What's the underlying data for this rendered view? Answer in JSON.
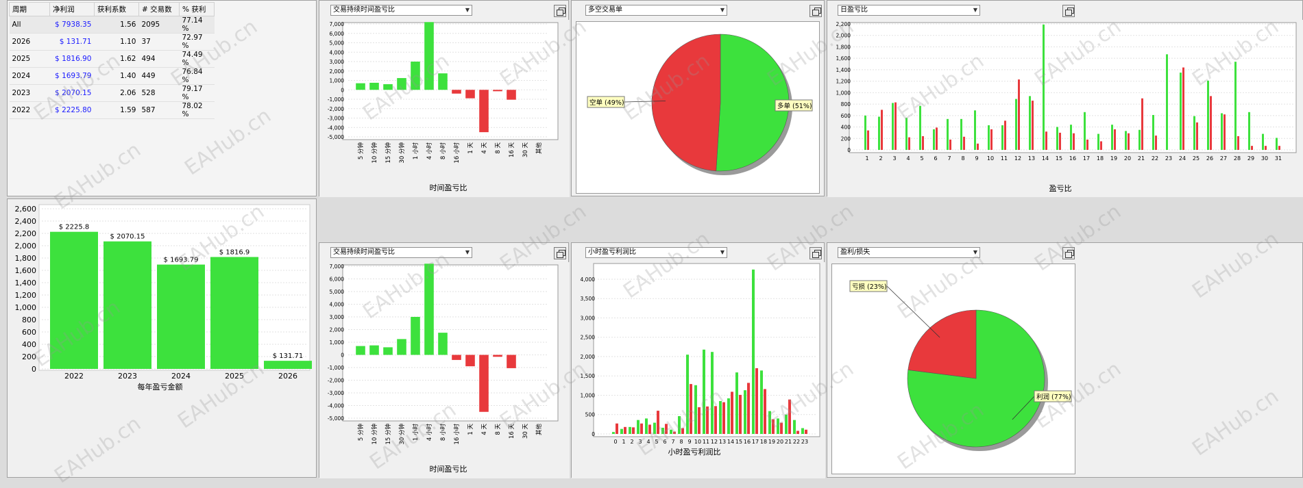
{
  "stats_table": {
    "headers": [
      "周期",
      "净利润",
      "获利系数",
      "# 交易数",
      "% 获利"
    ],
    "rows": [
      {
        "period": "All",
        "net": "$ 7938.35",
        "pf": "1.56",
        "trades": "2095",
        "win": "77.14 %"
      },
      {
        "period": "2026",
        "net": "$ 131.71",
        "pf": "1.10",
        "trades": "37",
        "win": "72.97 %"
      },
      {
        "period": "2025",
        "net": "$ 1816.90",
        "pf": "1.62",
        "trades": "494",
        "win": "74.49 %"
      },
      {
        "period": "2024",
        "net": "$ 1693.79",
        "pf": "1.40",
        "trades": "449",
        "win": "76.84 %"
      },
      {
        "period": "2023",
        "net": "$ 2070.15",
        "pf": "2.06",
        "trades": "528",
        "win": "79.17 %"
      },
      {
        "period": "2022",
        "net": "$ 2225.80",
        "pf": "1.59",
        "trades": "587",
        "win": "78.02 %"
      }
    ]
  },
  "panels": {
    "p1_select": "交易持续时间盈亏比",
    "p2_select": "多空交易单",
    "p3_select": "日盈亏比",
    "p5_select": "交易持续时间盈亏比",
    "p6_select": "小时盈亏利润比",
    "p7_select": "盈利/损失"
  },
  "watermark": "EAHub.cn",
  "colors": {
    "green": "#3de13d",
    "red": "#e8393c",
    "label_bg": "#ffffc0"
  },
  "chart_data": [
    {
      "id": "duration1",
      "type": "bar",
      "xlabel": "时间盈亏比",
      "categories": [
        "5 分钟",
        "10 分钟",
        "15 分钟",
        "30 分钟",
        "1 小时",
        "4 小时",
        "8 小时",
        "16 小时",
        "1 天",
        "4 天",
        "8 天",
        "16 天",
        "30 天",
        "其他"
      ],
      "values": [
        700,
        750,
        600,
        1250,
        3000,
        7200,
        1750,
        -400,
        -900,
        -4500,
        -150,
        -1050,
        0,
        0
      ],
      "ylim": [
        -5000,
        7000
      ],
      "yticks": [
        "7,000",
        "6,000",
        "5,000",
        "4,000",
        "3,000",
        "2,000",
        "1,000",
        "0",
        "-1,000",
        "-2,000",
        "-3,000",
        "-4,000",
        "-5,000"
      ]
    },
    {
      "id": "longshort",
      "type": "pie",
      "slices": [
        {
          "label": "多单 (51%)",
          "value": 51,
          "color": "#3de13d"
        },
        {
          "label": "空单 (49%)",
          "value": 49,
          "color": "#e8393c"
        }
      ]
    },
    {
      "id": "daily",
      "type": "bar",
      "xlabel": "盈亏比",
      "categories": [
        "1",
        "2",
        "3",
        "4",
        "5",
        "6",
        "7",
        "8",
        "9",
        "10",
        "11",
        "12",
        "13",
        "14",
        "15",
        "16",
        "17",
        "18",
        "19",
        "20",
        "21",
        "22",
        "23",
        "24",
        "25",
        "26",
        "27",
        "28",
        "29",
        "30",
        "31"
      ],
      "series": [
        {
          "color": "green",
          "values": [
            600,
            580,
            820,
            560,
            770,
            360,
            540,
            540,
            690,
            430,
            430,
            890,
            940,
            2190,
            400,
            440,
            660,
            280,
            440,
            330,
            350,
            610,
            1670,
            1350,
            590,
            1210,
            640,
            1540,
            660,
            280,
            210
          ]
        },
        {
          "color": "red",
          "values": [
            340,
            700,
            830,
            220,
            240,
            390,
            180,
            230,
            110,
            360,
            510,
            1230,
            860,
            320,
            300,
            290,
            180,
            150,
            360,
            290,
            900,
            250,
            0,
            1440,
            480,
            940,
            620,
            240,
            70,
            70,
            70
          ]
        }
      ],
      "ylim": [
        0,
        2200
      ],
      "yticks": [
        "2,200",
        "2,000",
        "1,800",
        "1,600",
        "1,400",
        "1,200",
        "1,000",
        "800",
        "600",
        "400",
        "200",
        "0"
      ]
    },
    {
      "id": "yearly",
      "type": "bar",
      "xlabel": "每年盈亏金额",
      "categories": [
        "2022",
        "2023",
        "2024",
        "2025",
        "2026"
      ],
      "values": [
        2225.8,
        2070.15,
        1693.79,
        1816.9,
        131.71
      ],
      "data_labels": [
        "$ 2225.8",
        "$ 2070.15",
        "$ 1693.79",
        "$ 1816.9",
        "$ 131.71"
      ],
      "ylim": [
        0,
        2600
      ],
      "yticks": [
        "2,600",
        "2,400",
        "2,200",
        "2,000",
        "1,800",
        "1,600",
        "1,400",
        "1,200",
        "1,000",
        "800",
        "600",
        "400",
        "200",
        "0"
      ]
    },
    {
      "id": "duration2",
      "type": "bar",
      "xlabel": "时间盈亏比",
      "categories": [
        "5 分钟",
        "10 分钟",
        "15 分钟",
        "30 分钟",
        "1 小时",
        "4 小时",
        "8 小时",
        "16 小时",
        "1 天",
        "4 天",
        "8 天",
        "16 天",
        "30 天",
        "其他"
      ],
      "values": [
        700,
        750,
        600,
        1250,
        3000,
        7200,
        1750,
        -400,
        -900,
        -4500,
        -150,
        -1050,
        0,
        0
      ],
      "ylim": [
        -5000,
        7000
      ],
      "yticks": [
        "7,000",
        "6,000",
        "5,000",
        "4,000",
        "3,000",
        "2,000",
        "1,000",
        "0",
        "-1,000",
        "-2,000",
        "-3,000",
        "-4,000",
        "-5,000"
      ]
    },
    {
      "id": "hourly",
      "type": "bar",
      "xlabel": "小时盈亏利润比",
      "categories": [
        "0",
        "1",
        "2",
        "3",
        "4",
        "5",
        "6",
        "7",
        "8",
        "9",
        "10",
        "11",
        "12",
        "13",
        "14",
        "15",
        "16",
        "17",
        "18",
        "19",
        "20",
        "21",
        "22",
        "23"
      ],
      "series": [
        {
          "color": "green",
          "values": [
            50,
            130,
            180,
            360,
            400,
            290,
            160,
            110,
            460,
            2050,
            1260,
            2180,
            2120,
            850,
            920,
            1590,
            1130,
            4250,
            1640,
            590,
            400,
            500,
            360,
            150
          ]
        },
        {
          "color": "red",
          "values": [
            270,
            180,
            170,
            270,
            240,
            600,
            260,
            60,
            150,
            1290,
            690,
            710,
            720,
            820,
            1090,
            1010,
            1320,
            1700,
            1160,
            380,
            290,
            890,
            80,
            110
          ]
        }
      ],
      "ylim": [
        0,
        4300
      ],
      "yticks": [
        "4,000",
        "3,500",
        "3,000",
        "2,500",
        "2,000",
        "1,500",
        "1,000",
        "500",
        "0"
      ]
    },
    {
      "id": "profitloss",
      "type": "pie",
      "slices": [
        {
          "label": "利润 (77%)",
          "value": 77,
          "color": "#3de13d"
        },
        {
          "label": "亏损 (23%)",
          "value": 23,
          "color": "#e8393c"
        }
      ]
    }
  ]
}
